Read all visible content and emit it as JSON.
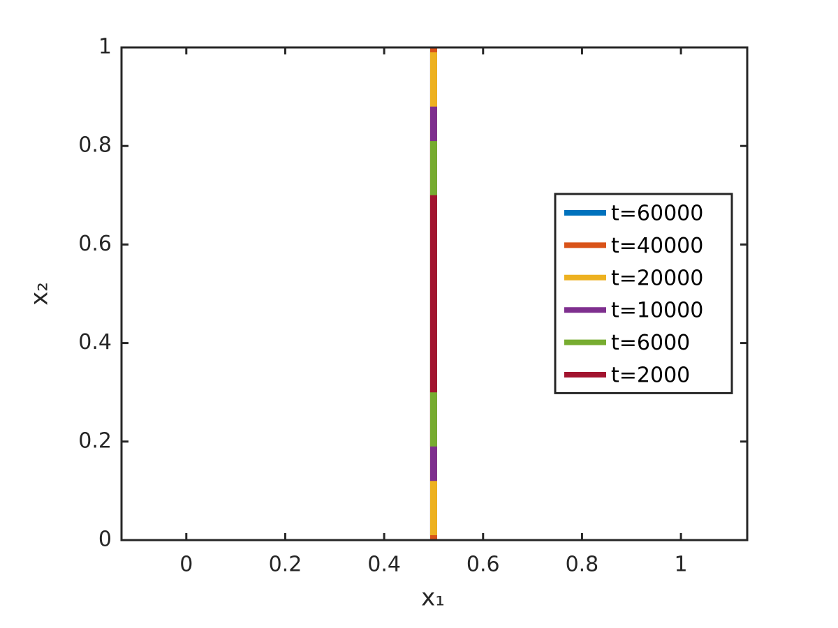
{
  "chart_data": {
    "type": "line",
    "xlabel": "x₁",
    "ylabel": "x₂",
    "x": [
      0.5,
      0.5
    ],
    "series": [
      {
        "name": "t=60000",
        "color": "#0072bd",
        "values": [
          0,
          1
        ]
      },
      {
        "name": "t=40000",
        "color": "#d95319",
        "values": [
          0,
          1
        ]
      },
      {
        "name": "t=20000",
        "color": "#edb120",
        "values": [
          0.01,
          0.99
        ]
      },
      {
        "name": "t=10000",
        "color": "#7e2f8e",
        "values": [
          0.12,
          0.88
        ]
      },
      {
        "name": "t=6000",
        "color": "#77ac30",
        "values": [
          0.19,
          0.81
        ]
      },
      {
        "name": "t=2000",
        "color": "#a2142f",
        "values": [
          0.3,
          0.7
        ]
      }
    ],
    "xlim": [
      -0.131,
      1.134
    ],
    "ylim": [
      0,
      1
    ],
    "xticks": [
      0,
      0.2,
      0.4,
      0.6,
      0.8,
      1
    ],
    "yticks": [
      0,
      0.2,
      0.4,
      0.6,
      0.8,
      1
    ],
    "grid": false,
    "legend": "east"
  }
}
